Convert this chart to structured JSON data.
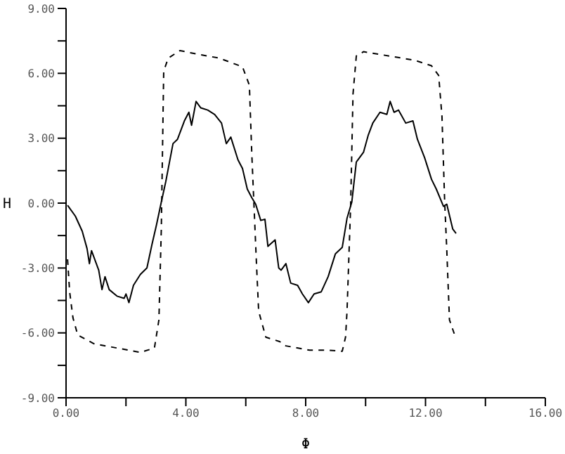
{
  "chart_data": {
    "type": "line",
    "xlabel": "Φ",
    "ylabel": "H",
    "xlim": [
      0,
      16
    ],
    "ylim": [
      -9,
      9
    ],
    "xticks": [
      {
        "value": 0,
        "label": "0.00"
      },
      {
        "value": 2,
        "label": null
      },
      {
        "value": 4,
        "label": "4.00"
      },
      {
        "value": 6,
        "label": null
      },
      {
        "value": 8,
        "label": "8.00"
      },
      {
        "value": 10,
        "label": null
      },
      {
        "value": 12,
        "label": "12.00"
      },
      {
        "value": 14,
        "label": null
      },
      {
        "value": 16,
        "label": "16.00"
      }
    ],
    "yticks": [
      {
        "value": -9,
        "label": "-9.00"
      },
      {
        "value": -7.5,
        "label": null
      },
      {
        "value": -6,
        "label": "-6.00"
      },
      {
        "value": -4.5,
        "label": null
      },
      {
        "value": -3,
        "label": "-3.00"
      },
      {
        "value": -1.5,
        "label": null
      },
      {
        "value": 0,
        "label": "0.00"
      },
      {
        "value": 1.5,
        "label": null
      },
      {
        "value": 3,
        "label": "3.00"
      },
      {
        "value": 4.5,
        "label": null
      },
      {
        "value": 6,
        "label": "6.00"
      },
      {
        "value": 7.5,
        "label": null
      },
      {
        "value": 9,
        "label": "9.00"
      }
    ],
    "marker": "none",
    "series": [
      {
        "color": "#000000",
        "line_style": "solid",
        "x": [
          0.05,
          0.31,
          0.54,
          0.7,
          0.78,
          0.85,
          1.09,
          1.2,
          1.3,
          1.44,
          1.7,
          1.94,
          2.0,
          2.1,
          2.25,
          2.48,
          2.7,
          2.87,
          3.02,
          3.18,
          3.33,
          3.57,
          3.72,
          3.95,
          4.1,
          4.19,
          4.34,
          4.5,
          4.73,
          4.96,
          5.19,
          5.35,
          5.5,
          5.74,
          5.89,
          6.05,
          6.2,
          6.33,
          6.5,
          6.64,
          6.74,
          6.98,
          7.1,
          7.18,
          7.34,
          7.5,
          7.73,
          7.89,
          8.09,
          8.28,
          8.52,
          8.75,
          8.99,
          9.22,
          9.38,
          9.54,
          9.69,
          9.93,
          10.09,
          10.24,
          10.48,
          10.71,
          10.82,
          10.95,
          11.1,
          11.34,
          11.58,
          11.73,
          11.97,
          12.2,
          12.36,
          12.6,
          12.71,
          12.91,
          13.02
        ],
        "values": [
          -0.1,
          -0.6,
          -1.3,
          -2.1,
          -2.8,
          -2.2,
          -3.1,
          -4.0,
          -3.4,
          -4.0,
          -4.3,
          -4.4,
          -4.2,
          -4.6,
          -3.8,
          -3.3,
          -3.0,
          -1.9,
          -1.0,
          0.05,
          1.0,
          2.75,
          2.95,
          3.8,
          4.2,
          3.6,
          4.7,
          4.4,
          4.3,
          4.1,
          3.7,
          2.75,
          3.05,
          2.0,
          1.6,
          0.65,
          0.25,
          -0.05,
          -0.8,
          -0.75,
          -2.0,
          -1.7,
          -3.0,
          -3.1,
          -2.8,
          -3.7,
          -3.8,
          -4.2,
          -4.6,
          -4.2,
          -4.1,
          -3.4,
          -2.35,
          -2.05,
          -0.7,
          0.05,
          1.9,
          2.35,
          3.15,
          3.7,
          4.2,
          4.1,
          4.7,
          4.2,
          4.3,
          3.7,
          3.8,
          2.95,
          2.1,
          1.1,
          0.65,
          -0.15,
          -0.05,
          -1.2,
          -1.4
        ]
      },
      {
        "color": "#000000",
        "line_style": "dashed",
        "x": [
          0.05,
          0.12,
          0.23,
          0.39,
          0.93,
          1.7,
          2.48,
          2.95,
          3.1,
          3.18,
          3.26,
          3.41,
          3.8,
          4.34,
          5.12,
          5.89,
          6.12,
          6.2,
          6.36,
          6.43,
          6.67,
          7.13,
          7.34,
          8.13,
          8.75,
          9.22,
          9.33,
          9.38,
          9.5,
          9.58,
          9.69,
          9.93,
          10.79,
          11.65,
          12.2,
          12.44,
          12.55,
          12.64,
          12.71,
          12.8,
          13.0
        ],
        "values": [
          -2.6,
          -4.1,
          -5.3,
          -6.1,
          -6.5,
          -6.7,
          -6.9,
          -6.7,
          -5.4,
          -1.2,
          6.1,
          6.7,
          7.05,
          6.9,
          6.7,
          6.3,
          5.45,
          2.3,
          -2.9,
          -5.0,
          -6.2,
          -6.4,
          -6.6,
          -6.8,
          -6.8,
          -6.85,
          -6.2,
          -5.0,
          -0.15,
          5.05,
          6.8,
          7.0,
          6.8,
          6.6,
          6.35,
          5.9,
          4.0,
          0.05,
          -2.15,
          -5.4,
          -6.2
        ]
      }
    ]
  }
}
